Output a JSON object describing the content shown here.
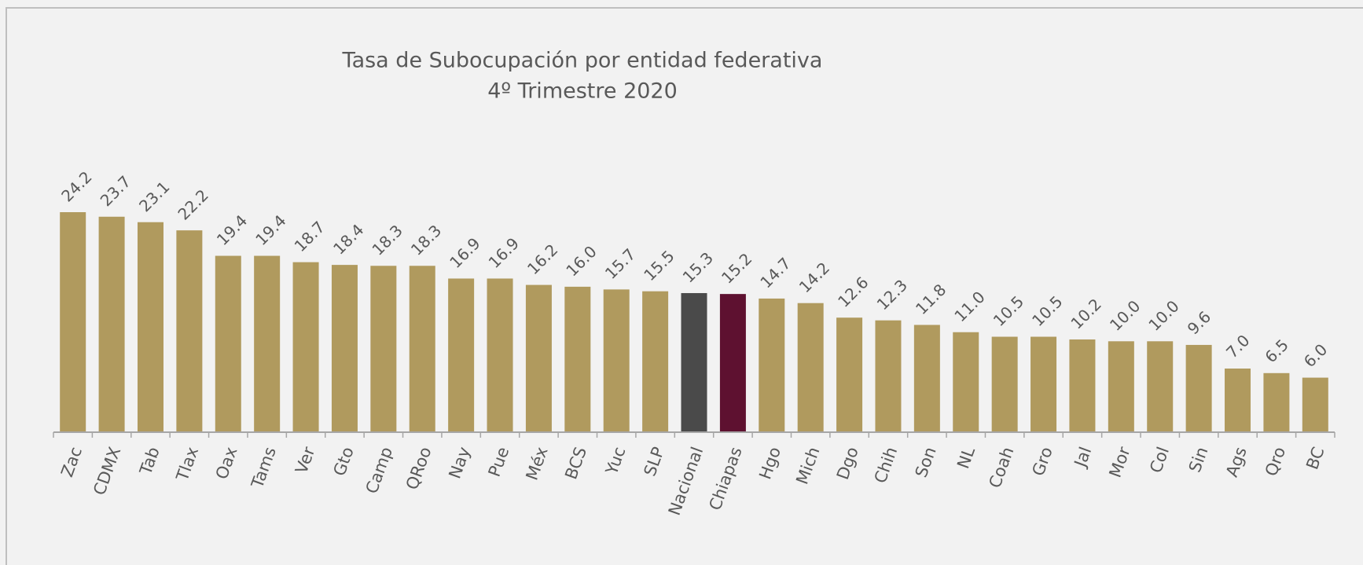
{
  "chart_data": {
    "type": "bar",
    "title": "Tasa de Subocupación por entidad federativa",
    "subtitle": "4º Trimestre 2020",
    "categories": [
      "Zac",
      "CDMX",
      "Tab",
      "Tlax",
      "Oax",
      "Tams",
      "Ver",
      "Gto",
      "Camp",
      "QRoo",
      "Nay",
      "Pue",
      "Méx",
      "BCS",
      "Yuc",
      "SLP",
      "Nacional",
      "Chiapas",
      "Hgo",
      "Mich",
      "Dgo",
      "Chih",
      "Son",
      "NL",
      "Coah",
      "Gro",
      "Jal",
      "Mor",
      "Col",
      "Sin",
      "Ags",
      "Qro",
      "BC"
    ],
    "values": [
      24.2,
      23.7,
      23.1,
      22.2,
      19.4,
      19.4,
      18.7,
      18.4,
      18.3,
      18.3,
      16.9,
      16.9,
      16.2,
      16.0,
      15.7,
      15.5,
      15.3,
      15.2,
      14.7,
      14.2,
      12.6,
      12.3,
      11.8,
      11.0,
      10.5,
      10.5,
      10.2,
      10.0,
      10.0,
      9.6,
      7.0,
      6.5,
      6.0
    ],
    "value_labels": [
      "24.2",
      "23.7",
      "23.1",
      "22.2",
      "19.4",
      "19.4",
      "18.7",
      "18.4",
      "18.3",
      "18.3",
      "16.9",
      "16.9",
      "16.2",
      "16.0",
      "15.7",
      "15.5",
      "15.3",
      "15.2",
      "14.7",
      "14.2",
      "12.6",
      "12.3",
      "11.8",
      "11.0",
      "10.5",
      "10.5",
      "10.2",
      "10.0",
      "10.0",
      "9.6",
      "7.0",
      "6.5",
      "6.0"
    ],
    "colors": [
      "#b09a5e",
      "#b09a5e",
      "#b09a5e",
      "#b09a5e",
      "#b09a5e",
      "#b09a5e",
      "#b09a5e",
      "#b09a5e",
      "#b09a5e",
      "#b09a5e",
      "#b09a5e",
      "#b09a5e",
      "#b09a5e",
      "#b09a5e",
      "#b09a5e",
      "#b09a5e",
      "#4a4a4a",
      "#5e1130",
      "#b09a5e",
      "#b09a5e",
      "#b09a5e",
      "#b09a5e",
      "#b09a5e",
      "#b09a5e",
      "#b09a5e",
      "#b09a5e",
      "#b09a5e",
      "#b09a5e",
      "#b09a5e",
      "#b09a5e",
      "#b09a5e",
      "#b09a5e",
      "#b09a5e"
    ]
  }
}
